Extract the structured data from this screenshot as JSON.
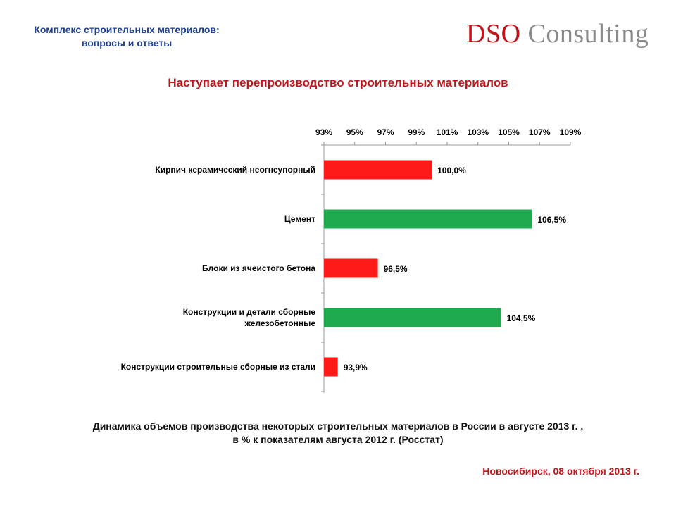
{
  "header": {
    "title_line1": "Комплекс строительных материалов:",
    "title_line2": "вопросы и ответы",
    "logo_brand": "DSO",
    "logo_rest": "Consulting"
  },
  "slide_title": "Наступает перепроизводство строительных материалов",
  "caption": {
    "line1": "Динамика объемов производства некоторых строительных материалов в России в августе 2013 г. ,",
    "line2": "в % к показателям августа 2012 г. (Росстат)"
  },
  "footer": "Новосибирск, 08 октября 2013 г.",
  "colors": {
    "red": "#ff1a1a",
    "green": "#1faa4f",
    "title_red": "#c0161b",
    "header_blue": "#1f3f8f"
  },
  "chart_data": {
    "type": "bar",
    "orientation": "horizontal",
    "axis_position": "top",
    "xlim": [
      93,
      109
    ],
    "ticks": [
      93,
      95,
      97,
      99,
      101,
      103,
      105,
      107,
      109
    ],
    "tick_labels": [
      "93%",
      "95%",
      "97%",
      "99%",
      "101%",
      "103%",
      "105%",
      "107%",
      "109%"
    ],
    "categories": [
      [
        "Кирпич керамический неогнеупорный"
      ],
      [
        "Цемент"
      ],
      [
        "Блоки из ячеистого бетона"
      ],
      [
        "Конструкции и детали сборные",
        "железобетонные"
      ],
      [
        "Конструкции строительные сборные из стали"
      ]
    ],
    "values": [
      100.0,
      106.5,
      96.5,
      104.5,
      93.9
    ],
    "data_labels": [
      "100,0%",
      "106,5%",
      "96,5%",
      "104,5%",
      "93,9%"
    ],
    "bar_colors": [
      "red",
      "green",
      "red",
      "green",
      "red"
    ]
  }
}
